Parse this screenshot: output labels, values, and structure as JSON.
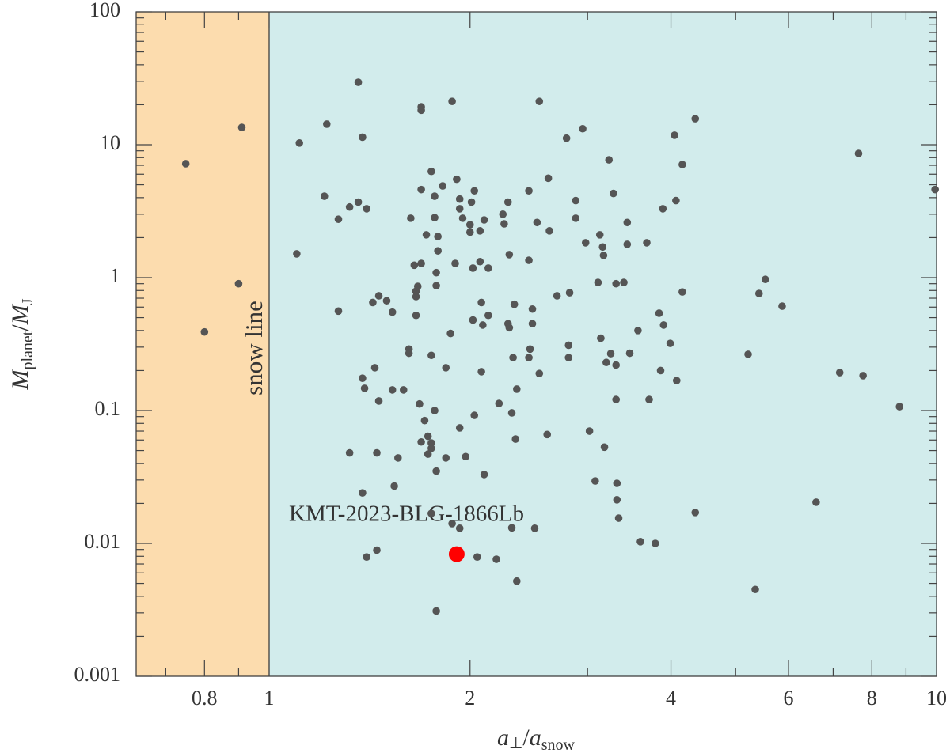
{
  "chart_data": {
    "type": "scatter",
    "x_scale": "log",
    "y_scale": "log",
    "xlim": [
      0.632,
      10
    ],
    "ylim": [
      0.001,
      100
    ],
    "xticks": [
      0.8,
      1,
      2,
      4,
      6,
      8,
      10
    ],
    "xminorticks": [
      0.7,
      0.9,
      3,
      5,
      7,
      9
    ],
    "yticks": [
      0.001,
      0.01,
      0.1,
      1,
      10,
      100
    ],
    "yminorticks": [
      0.002,
      0.003,
      0.004,
      0.005,
      0.006,
      0.007,
      0.008,
      0.009,
      0.02,
      0.03,
      0.04,
      0.05,
      0.06,
      0.07,
      0.08,
      0.09,
      0.2,
      0.3,
      0.4,
      0.5,
      0.6,
      0.7,
      0.8,
      0.9,
      2,
      3,
      4,
      5,
      6,
      7,
      8,
      9,
      20,
      30,
      40,
      50,
      60,
      70,
      80,
      90
    ],
    "xlabel": [
      "a",
      "⊥",
      "/",
      "a",
      "snow"
    ],
    "ylabel": [
      "M",
      "planet",
      "/",
      "M",
      "J"
    ],
    "snow_line": 1,
    "snow_line_label": "snow line",
    "inner_color": "#fcdcae",
    "outer_color": "#d2ecec",
    "point_color": "#555555",
    "x": [
      0.75,
      0.8,
      0.9,
      0.91,
      1.11,
      1.1,
      1.22,
      1.21,
      1.27,
      1.27,
      1.32,
      1.36,
      1.36,
      1.38,
      1.4,
      1.38,
      1.39,
      1.43,
      1.46,
      1.5,
      1.44,
      1.32,
      1.38,
      1.4,
      1.45,
      1.45,
      1.46,
      1.53,
      1.53,
      1.56,
      1.54,
      1.59,
      1.62,
      1.62,
      1.63,
      1.65,
      1.66,
      1.66,
      1.67,
      1.66,
      1.68,
      1.69,
      1.69,
      1.69,
      1.72,
      1.69,
      1.71,
      1.69,
      1.73,
      1.75,
      1.73,
      1.75,
      1.77,
      1.77,
      1.79,
      1.79,
      1.78,
      1.78,
      1.75,
      1.75,
      1.77,
      1.78,
      1.75,
      1.84,
      1.82,
      1.84,
      1.87,
      1.88,
      1.9,
      1.91,
      1.93,
      1.93,
      1.95,
      1.93,
      1.88,
      1.93,
      1.78,
      1.97,
      2.02,
      2.01,
      2.03,
      2.0,
      2.0,
      2.02,
      2.03,
      2.05,
      2.07,
      2.07,
      2.08,
      2.09,
      2.08,
      2.1,
      2.1,
      2.13,
      2.13,
      2.21,
      2.19,
      2.24,
      2.25,
      2.28,
      2.29,
      2.28,
      2.29,
      2.31,
      2.32,
      2.33,
      2.34,
      2.35,
      2.35,
      2.31,
      2.45,
      2.45,
      2.46,
      2.45,
      2.48,
      2.48,
      2.5,
      2.52,
      2.54,
      2.54,
      2.62,
      2.61,
      2.63,
      2.7,
      2.79,
      2.81,
      2.81,
      2.82,
      2.88,
      2.88,
      2.95,
      2.98,
      3.02,
      3.08,
      3.11,
      3.13,
      3.14,
      3.16,
      3.17,
      3.18,
      3.2,
      3.23,
      3.25,
      3.28,
      3.31,
      3.31,
      3.31,
      3.32,
      3.32,
      3.34,
      3.4,
      3.44,
      3.44,
      3.47,
      3.57,
      3.6,
      3.68,
      3.71,
      3.79,
      3.84,
      3.86,
      3.89,
      3.9,
      3.99,
      4.05,
      4.07,
      4.08,
      4.16,
      4.16,
      4.35,
      4.35,
      5.22,
      5.35,
      5.42,
      5.54,
      5.87,
      6.6,
      7.16,
      7.64,
      7.76,
      8.8,
      9.95
    ],
    "y": [
      7.2,
      0.39,
      0.9,
      13.5,
      10.3,
      1.51,
      14.3,
      4.1,
      2.75,
      0.56,
      3.4,
      29.5,
      3.7,
      11.4,
      3.3,
      0.175,
      0.147,
      0.65,
      0.73,
      0.67,
      0.21,
      0.048,
      0.024,
      0.0079,
      0.0089,
      0.048,
      0.118,
      0.55,
      0.143,
      0.044,
      0.027,
      0.143,
      0.27,
      0.29,
      2.8,
      1.24,
      0.79,
      0.72,
      0.86,
      0.52,
      0.112,
      19.3,
      18.2,
      4.6,
      2.1,
      1.28,
      0.084,
      0.058,
      0.064,
      0.057,
      0.047,
      0.052,
      2.83,
      4.1,
      2.04,
      1.59,
      1.09,
      0.87,
      6.3,
      0.26,
      0.1,
      0.035,
      0.0168,
      0.044,
      4.9,
      0.21,
      0.38,
      21.2,
      1.28,
      5.5,
      3.3,
      3.9,
      2.8,
      0.074,
      0.0141,
      0.013,
      0.0031,
      0.045,
      1.18,
      3.7,
      4.5,
      2.2,
      2.5,
      0.48,
      0.092,
      0.0079,
      2.25,
      1.32,
      0.65,
      0.44,
      0.196,
      2.72,
      0.033,
      0.52,
      1.18,
      0.113,
      0.0076,
      3.0,
      2.54,
      3.7,
      1.49,
      0.45,
      0.42,
      0.096,
      0.25,
      0.63,
      0.061,
      0.145,
      0.0052,
      0.0131,
      4.5,
      1.35,
      0.29,
      0.25,
      0.58,
      0.45,
      0.013,
      2.6,
      21.2,
      0.19,
      5.6,
      0.066,
      2.25,
      0.73,
      11.2,
      0.25,
      0.31,
      0.77,
      2.8,
      3.8,
      13.2,
      1.83,
      0.07,
      0.0295,
      0.92,
      2.1,
      0.35,
      1.7,
      1.47,
      0.053,
      0.23,
      7.7,
      0.268,
      4.3,
      0.9,
      0.22,
      0.121,
      0.0283,
      0.0213,
      0.0155,
      0.92,
      2.6,
      1.78,
      0.27,
      0.4,
      0.0103,
      1.83,
      0.121,
      0.01,
      0.54,
      0.2,
      3.3,
      0.44,
      0.32,
      11.8,
      3.8,
      0.168,
      7.1,
      0.78,
      15.7,
      0.0171,
      0.265,
      0.0045,
      0.76,
      0.97,
      0.61,
      0.0204,
      0.193,
      8.6,
      0.183,
      0.107,
      4.6
    ],
    "highlight": {
      "label": "KMT-2023-BLG-1866Lb",
      "x": 1.91,
      "y": 0.0083,
      "color": "#ff0000"
    }
  }
}
